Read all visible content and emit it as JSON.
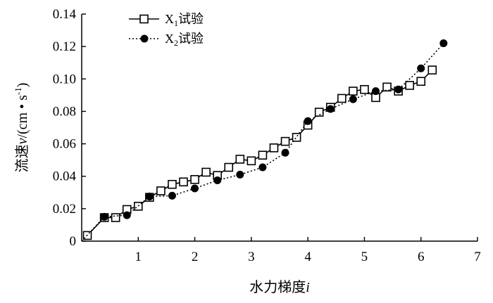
{
  "chart_data": {
    "type": "line",
    "title": "",
    "xlabel": {
      "prefix": "水力梯度",
      "var": "i"
    },
    "ylabel": {
      "prefix": "流速",
      "var": "v",
      "unit_open": "/(cm • s",
      "unit_exp": "-1",
      "unit_close": ")"
    },
    "xlim": [
      0,
      7
    ],
    "ylim": [
      0,
      0.14
    ],
    "xticks": [
      1,
      2,
      3,
      4,
      5,
      6,
      7
    ],
    "yticks": [
      0,
      0.02,
      0.04,
      0.06,
      0.08,
      0.1,
      0.12,
      0.14
    ],
    "ytick_labels": [
      "0",
      "0.02",
      "0.04",
      "0.06",
      "0.08",
      "0.10",
      "0.12",
      "0.14"
    ],
    "grid": false,
    "legend_position": "top-left",
    "series": [
      {
        "name": "X1试验",
        "name_parts": {
          "base": "X",
          "sub": "1",
          "suffix": "试验"
        },
        "marker": "open-square",
        "line": "solid",
        "color": "#000000",
        "points": [
          [
            0.1,
            0.0035
          ],
          [
            0.4,
            0.0145
          ],
          [
            0.6,
            0.0145
          ],
          [
            0.8,
            0.0195
          ],
          [
            1.0,
            0.0215
          ],
          [
            1.2,
            0.027
          ],
          [
            1.4,
            0.031
          ],
          [
            1.6,
            0.035
          ],
          [
            1.8,
            0.0365
          ],
          [
            2.0,
            0.038
          ],
          [
            2.2,
            0.0425
          ],
          [
            2.4,
            0.0405
          ],
          [
            2.6,
            0.0455
          ],
          [
            2.8,
            0.0505
          ],
          [
            3.0,
            0.0495
          ],
          [
            3.2,
            0.053
          ],
          [
            3.4,
            0.0575
          ],
          [
            3.6,
            0.0615
          ],
          [
            3.8,
            0.064
          ],
          [
            4.0,
            0.0715
          ],
          [
            4.2,
            0.0795
          ],
          [
            4.4,
            0.0825
          ],
          [
            4.6,
            0.088
          ],
          [
            4.8,
            0.0925
          ],
          [
            5.0,
            0.0935
          ],
          [
            5.2,
            0.0885
          ],
          [
            5.4,
            0.095
          ],
          [
            5.6,
            0.0925
          ],
          [
            5.8,
            0.096
          ],
          [
            6.0,
            0.0985
          ],
          [
            6.2,
            0.1055
          ]
        ]
      },
      {
        "name": "X2试验",
        "name_parts": {
          "base": "X",
          "sub": "2",
          "suffix": "试验"
        },
        "marker": "filled-circle",
        "line": "dotted",
        "color": "#000000",
        "points": [
          [
            0.0,
            0.0
          ],
          [
            0.4,
            0.015
          ],
          [
            0.8,
            0.016
          ],
          [
            1.2,
            0.0275
          ],
          [
            1.6,
            0.028
          ],
          [
            2.0,
            0.0325
          ],
          [
            2.4,
            0.0375
          ],
          [
            2.8,
            0.041
          ],
          [
            3.2,
            0.0455
          ],
          [
            3.6,
            0.0545
          ],
          [
            4.0,
            0.074
          ],
          [
            4.4,
            0.0815
          ],
          [
            4.8,
            0.0875
          ],
          [
            5.2,
            0.0925
          ],
          [
            5.6,
            0.0935
          ],
          [
            6.0,
            0.1065
          ],
          [
            6.4,
            0.122
          ]
        ]
      }
    ]
  }
}
